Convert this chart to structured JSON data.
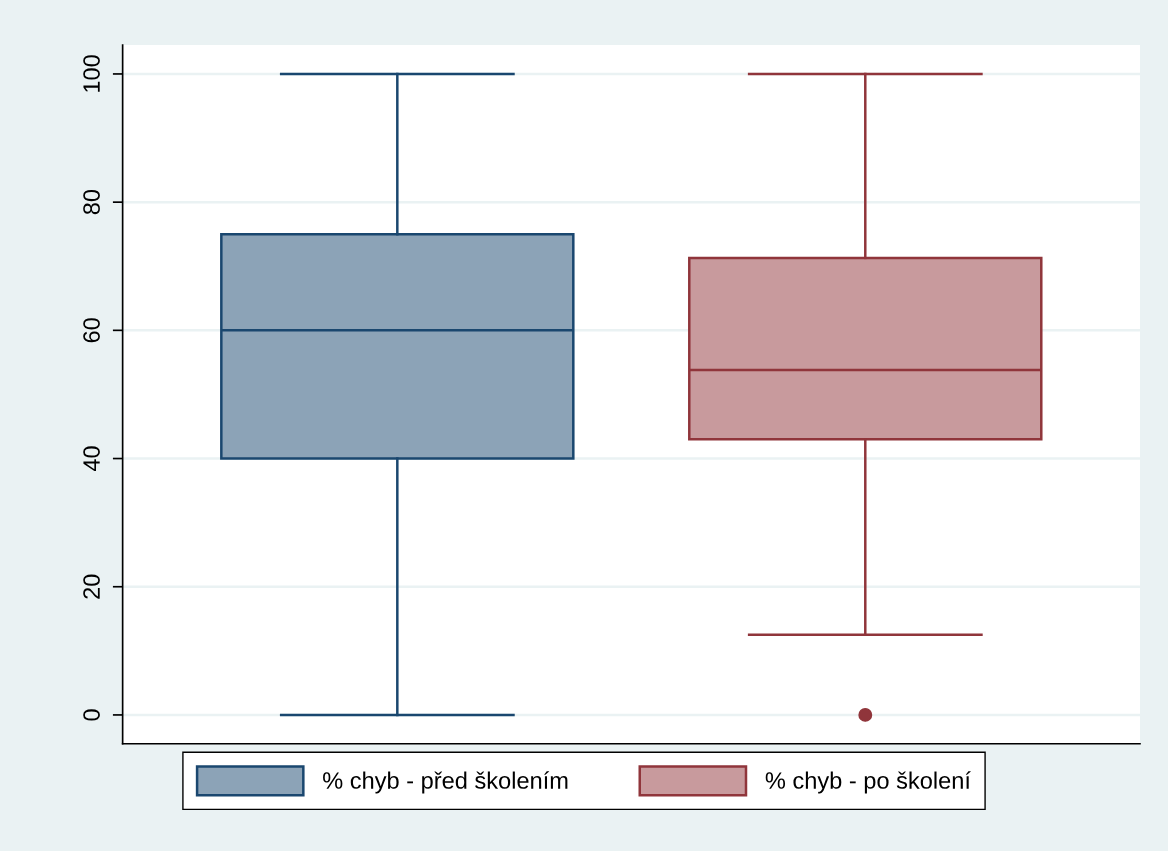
{
  "chart_data": {
    "type": "box",
    "categories": [
      null
    ],
    "series": [
      {
        "name": "% chyb - před školením",
        "color": "#1a476f",
        "boxes": [
          {
            "low": 0,
            "q1": 40,
            "median": 60,
            "q3": 75,
            "high": 100
          }
        ]
      },
      {
        "name": "% chyb - po školení",
        "color": "#90353b",
        "boxes": [
          {
            "low": 12.5,
            "q1": 43,
            "median": 53.8,
            "q3": 71.3,
            "high": 100,
            "outliers": [
              0
            ]
          }
        ]
      }
    ],
    "ylim": [
      -4.5,
      104.5
    ],
    "yticks": [
      0,
      20,
      40,
      60,
      80,
      100
    ],
    "grid": "y",
    "legend": "bottom",
    "tick_labels": "y"
  }
}
